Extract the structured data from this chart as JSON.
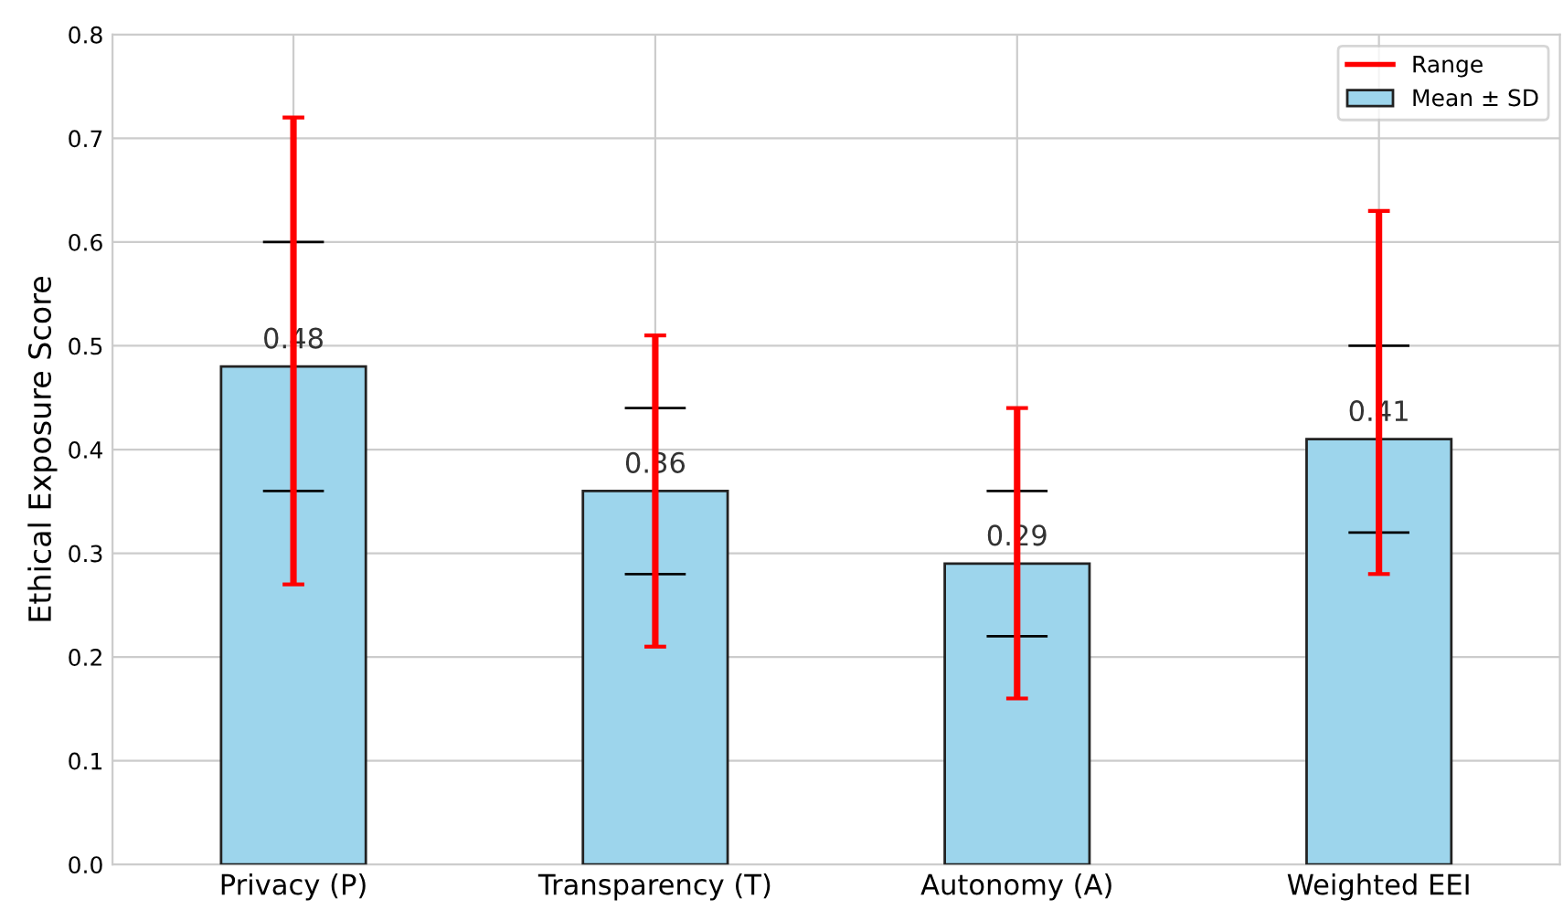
{
  "chart_data": {
    "type": "bar",
    "ylabel": "Ethical Exposure Score",
    "categories": [
      "Privacy (P)",
      "Transparency (T)",
      "Autonomy (A)",
      "Weighted EEI"
    ],
    "series": [
      {
        "name": "Range",
        "type": "bar",
        "color": "#ff0000",
        "base": [
          0.27,
          0.21,
          0.16,
          0.28
        ],
        "values": [
          0.45,
          0.3,
          0.28,
          0.35
        ]
      },
      {
        "name": "Mean ± SD",
        "color": "#9dd5ec",
        "values": [
          0.48,
          0.36,
          0.29,
          0.41
        ],
        "errors": [
          [
            0.36,
            0.6
          ],
          [
            0.28,
            0.44
          ],
          [
            0.22,
            0.36
          ],
          [
            0.32,
            0.5
          ]
        ],
        "value_labels": [
          "0.48",
          "0.36",
          "0.29",
          "0.41"
        ]
      }
    ],
    "ylim": [
      0,
      0.8
    ],
    "yticks": [
      {
        "value": 0,
        "label": "0.0"
      },
      0.1,
      0.2,
      0.3,
      0.4,
      0.5,
      0.6,
      0.7,
      0.8
    ],
    "grid": true,
    "legend": "top right"
  }
}
